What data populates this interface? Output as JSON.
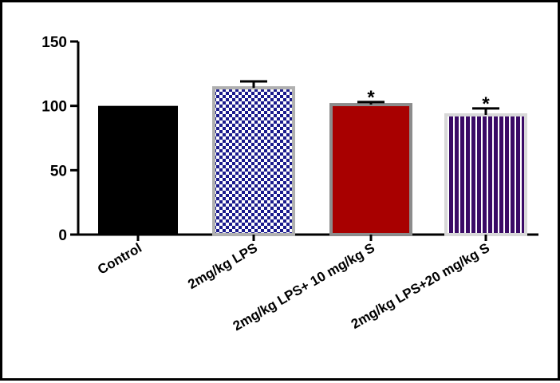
{
  "chart_data": {
    "type": "bar",
    "categories": [
      "Control",
      "2mg/kg LPS",
      "2mg/kg LPS+ 10 mg/kg S",
      "2mg/kg LPS+20 mg/kg S"
    ],
    "values": [
      100,
      114,
      101,
      93
    ],
    "error_upper": [
      0,
      5,
      2,
      5
    ],
    "annotations": [
      "",
      "",
      "*",
      "*"
    ],
    "ylim": [
      0,
      150
    ],
    "yticks": [
      0,
      50,
      100,
      150
    ],
    "title": "",
    "xlabel": "",
    "ylabel": "",
    "grid": false,
    "bar_styles": [
      {
        "fill": "solid",
        "color": "#000000"
      },
      {
        "fill": "checker",
        "color": "#1a1a8c",
        "alt": "#ffffff",
        "border": "#b0b0b0"
      },
      {
        "fill": "solid",
        "color": "#a80000",
        "border": "#8c8c8c"
      },
      {
        "fill": "vertical-stripes",
        "color": "#3a0a66",
        "alt": "#ffffff",
        "border": "#d8d8d8"
      }
    ]
  }
}
